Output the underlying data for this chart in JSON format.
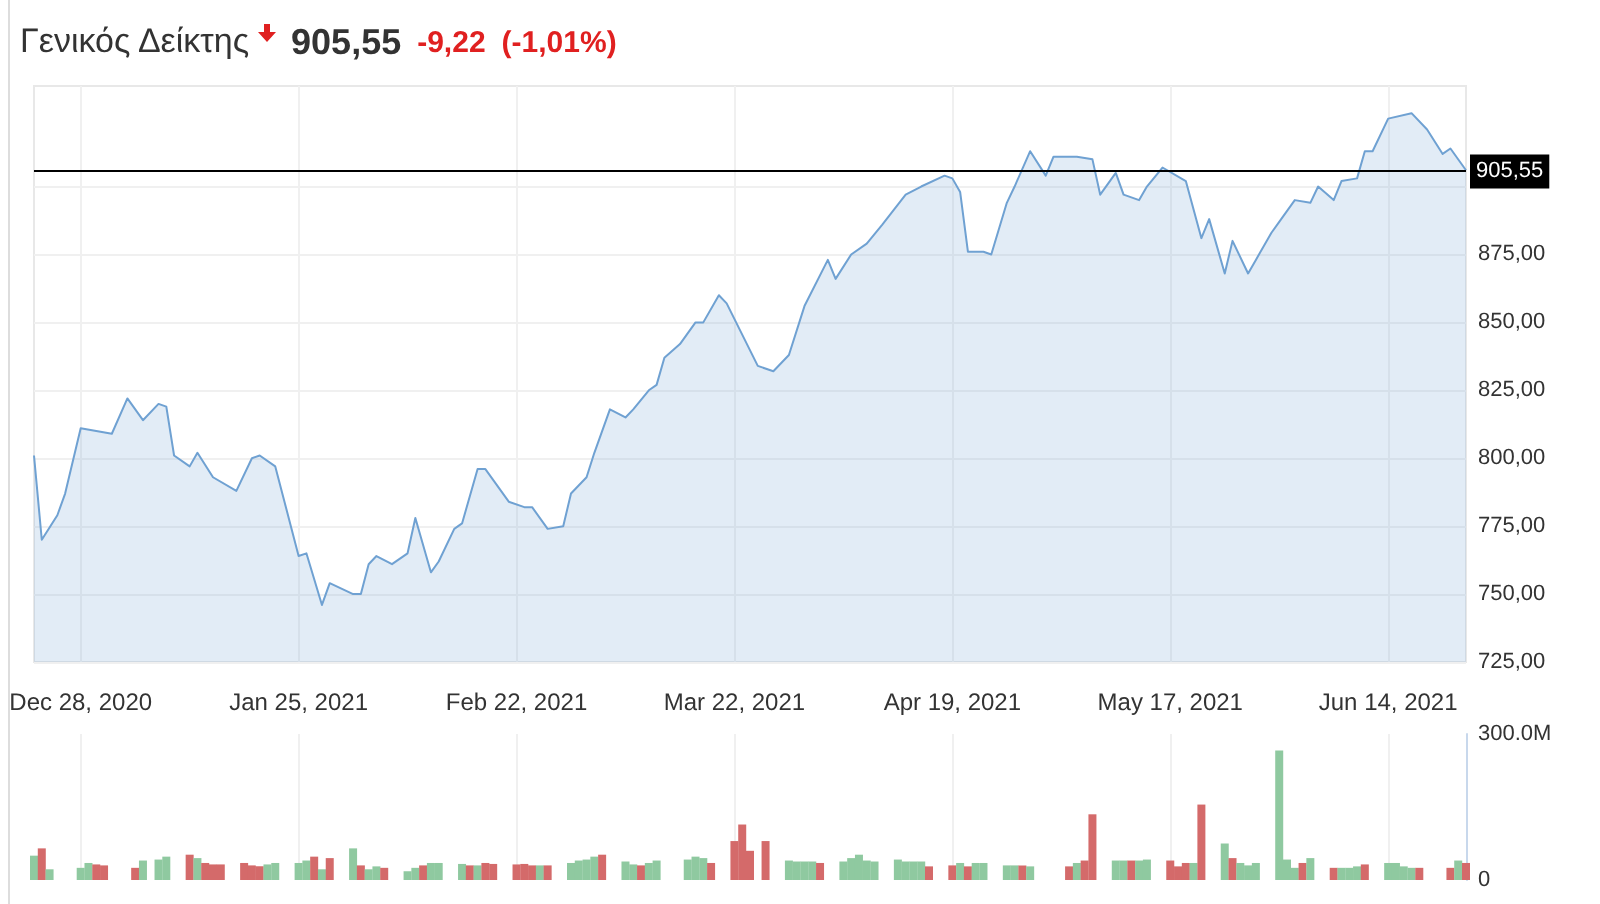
{
  "chart_data": [
    {
      "type": "area",
      "title": "Γενικός Δείκτης",
      "annotations": [
        "905,55",
        "-9,22",
        "(-1,01%)"
      ],
      "x": [
        "2020-12-22",
        "2020-12-23",
        "2020-12-25",
        "2020-12-26",
        "2020-12-28",
        "2021-01-01",
        "2021-01-03",
        "2021-01-05",
        "2021-01-07",
        "2021-01-08",
        "2021-01-09",
        "2021-01-11",
        "2021-01-12",
        "2021-01-14",
        "2021-01-17",
        "2021-01-19",
        "2021-01-20",
        "2021-01-22",
        "2021-01-25",
        "2021-01-26",
        "2021-01-28",
        "2021-01-29",
        "2021-02-01",
        "2021-02-02",
        "2021-02-03",
        "2021-02-04",
        "2021-02-06",
        "2021-02-08",
        "2021-02-09",
        "2021-02-11",
        "2021-02-12",
        "2021-02-14",
        "2021-02-15",
        "2021-02-17",
        "2021-02-18",
        "2021-02-21",
        "2021-02-23",
        "2021-02-24",
        "2021-02-26",
        "2021-02-28",
        "2021-03-01",
        "2021-03-03",
        "2021-03-04",
        "2021-03-06",
        "2021-03-08",
        "2021-03-09",
        "2021-03-11",
        "2021-03-12",
        "2021-03-13",
        "2021-03-15",
        "2021-03-17",
        "2021-03-18",
        "2021-03-20",
        "2021-03-21",
        "2021-03-25",
        "2021-03-27",
        "2021-03-29",
        "2021-03-31",
        "2021-04-03",
        "2021-04-04",
        "2021-04-06",
        "2021-04-08",
        "2021-04-10",
        "2021-04-13",
        "2021-04-15",
        "2021-04-18",
        "2021-04-19",
        "2021-04-20",
        "2021-04-21",
        "2021-04-23",
        "2021-04-24",
        "2021-04-26",
        "2021-04-27",
        "2021-04-29",
        "2021-05-01",
        "2021-05-02",
        "2021-05-05",
        "2021-05-07",
        "2021-05-08",
        "2021-05-10",
        "2021-05-11",
        "2021-05-13",
        "2021-05-14",
        "2021-05-16",
        "2021-05-19",
        "2021-05-21",
        "2021-05-22",
        "2021-05-24",
        "2021-05-25",
        "2021-05-27",
        "2021-05-28",
        "2021-05-30",
        "2021-05-31",
        "2021-06-02",
        "2021-06-04",
        "2021-06-05",
        "2021-06-07",
        "2021-06-08",
        "2021-06-10",
        "2021-06-11",
        "2021-06-12",
        "2021-06-14",
        "2021-06-17",
        "2021-06-19",
        "2021-06-21",
        "2021-06-22",
        "2021-06-24"
      ],
      "values": [
        801,
        770,
        779,
        787,
        811,
        809,
        822,
        814,
        820,
        819,
        801,
        797,
        802,
        793,
        788,
        800,
        801,
        797,
        764,
        765,
        746,
        754,
        750,
        750,
        761,
        764,
        761,
        765,
        778,
        758,
        762,
        774,
        776,
        796,
        796,
        784,
        782,
        782,
        774,
        775,
        787,
        793,
        802,
        818,
        815,
        818,
        825,
        827,
        837,
        842,
        850,
        850,
        860,
        857,
        834,
        832,
        838,
        856,
        873,
        866,
        875,
        879,
        886,
        897,
        900,
        904,
        903,
        898,
        876,
        876,
        875,
        894,
        900,
        913,
        904,
        911,
        911,
        910,
        897,
        905,
        897,
        895,
        900,
        907,
        902,
        881,
        888,
        868,
        880,
        868,
        873,
        883,
        887,
        895,
        894,
        900,
        895,
        902,
        903,
        913,
        913,
        925,
        927,
        921,
        912,
        914,
        906
      ],
      "color": "#6fa1d2",
      "xlim": [
        "2020-12-22",
        "2021-06-24"
      ],
      "xticks": [
        {
          "value": "2020-12-28",
          "label": "Dec 28, 2020"
        },
        {
          "value": "2021-01-25",
          "label": "Jan 25, 2021"
        },
        {
          "value": "2021-02-22",
          "label": "Feb 22, 2021"
        },
        {
          "value": "2021-03-22",
          "label": "Mar 22, 2021"
        },
        {
          "value": "2021-04-19",
          "label": "Apr 19, 2021"
        },
        {
          "value": "2021-05-17",
          "label": "May 17, 2021"
        },
        {
          "value": "2021-06-14",
          "label": "Jun 14, 2021"
        }
      ],
      "ylim": [
        725,
        937
      ],
      "yticks": [
        {
          "value": 725,
          "label": "725,00"
        },
        {
          "value": 750,
          "label": "750,00"
        },
        {
          "value": 775,
          "label": "775,00"
        },
        {
          "value": 800,
          "label": "800,00"
        },
        {
          "value": 825,
          "label": "825,00"
        },
        {
          "value": 850,
          "label": "850,00"
        },
        {
          "value": 875,
          "label": "875,00"
        },
        {
          "value": 900,
          "label": null
        }
      ],
      "grid": true,
      "marker": "none",
      "ref_lines": [
        {
          "axis": "y",
          "value": 905.55,
          "label": "905,55",
          "color": "#000000"
        }
      ]
    },
    {
      "type": "bar",
      "x": [
        "2020-12-22",
        "2020-12-23",
        "2020-12-24",
        "2020-12-28",
        "2020-12-29",
        "2020-12-30",
        "2020-12-31",
        "2021-01-04",
        "2021-01-05",
        "2021-01-07",
        "2021-01-08",
        "2021-01-11",
        "2021-01-12",
        "2021-01-13",
        "2021-01-14",
        "2021-01-15",
        "2021-01-18",
        "2021-01-19",
        "2021-01-20",
        "2021-01-21",
        "2021-01-22",
        "2021-01-25",
        "2021-01-26",
        "2021-01-27",
        "2021-01-28",
        "2021-01-29",
        "2021-02-01",
        "2021-02-02",
        "2021-02-03",
        "2021-02-04",
        "2021-02-05",
        "2021-02-08",
        "2021-02-09",
        "2021-02-10",
        "2021-02-11",
        "2021-02-12",
        "2021-02-15",
        "2021-02-16",
        "2021-02-17",
        "2021-02-18",
        "2021-02-19",
        "2021-02-22",
        "2021-02-23",
        "2021-02-24",
        "2021-02-25",
        "2021-02-26",
        "2021-03-01",
        "2021-03-02",
        "2021-03-03",
        "2021-03-04",
        "2021-03-05",
        "2021-03-08",
        "2021-03-09",
        "2021-03-10",
        "2021-03-11",
        "2021-03-12",
        "2021-03-16",
        "2021-03-17",
        "2021-03-18",
        "2021-03-19",
        "2021-03-22",
        "2021-03-23",
        "2021-03-24",
        "2021-03-26",
        "2021-03-29",
        "2021-03-30",
        "2021-03-31",
        "2021-04-01",
        "2021-04-02",
        "2021-04-05",
        "2021-04-06",
        "2021-04-07",
        "2021-04-08",
        "2021-04-09",
        "2021-04-12",
        "2021-04-13",
        "2021-04-14",
        "2021-04-15",
        "2021-04-16",
        "2021-04-19",
        "2021-04-20",
        "2021-04-21",
        "2021-04-22",
        "2021-04-23",
        "2021-04-26",
        "2021-04-27",
        "2021-04-28",
        "2021-04-29",
        "2021-05-04",
        "2021-05-05",
        "2021-05-06",
        "2021-05-07",
        "2021-05-10",
        "2021-05-11",
        "2021-05-12",
        "2021-05-13",
        "2021-05-14",
        "2021-05-17",
        "2021-05-18",
        "2021-05-19",
        "2021-05-20",
        "2021-05-21",
        "2021-05-24",
        "2021-05-25",
        "2021-05-26",
        "2021-05-27",
        "2021-05-28",
        "2021-05-31",
        "2021-06-01",
        "2021-06-02",
        "2021-06-03",
        "2021-06-04",
        "2021-06-07",
        "2021-06-08",
        "2021-06-09",
        "2021-06-10",
        "2021-06-11",
        "2021-06-14",
        "2021-06-15",
        "2021-06-16",
        "2021-06-17",
        "2021-06-18",
        "2021-06-22",
        "2021-06-23",
        "2021-06-24"
      ],
      "values": [
        50,
        65,
        22,
        25,
        35,
        32,
        30,
        25,
        40,
        42,
        48,
        52,
        45,
        35,
        32,
        32,
        35,
        30,
        28,
        32,
        35,
        35,
        40,
        48,
        22,
        45,
        65,
        30,
        22,
        28,
        25,
        18,
        25,
        30,
        35,
        35,
        33,
        30,
        30,
        35,
        33,
        32,
        33,
        30,
        30,
        30,
        35,
        40,
        42,
        48,
        52,
        38,
        32,
        30,
        35,
        40,
        42,
        48,
        45,
        35,
        80,
        114,
        60,
        80,
        40,
        38,
        38,
        38,
        35,
        38,
        45,
        52,
        40,
        38,
        42,
        38,
        38,
        38,
        28,
        30,
        35,
        28,
        35,
        35,
        30,
        30,
        30,
        28,
        28,
        35,
        40,
        135,
        40,
        40,
        40,
        40,
        42,
        40,
        28,
        35,
        35,
        155,
        75,
        45,
        35,
        30,
        35,
        266,
        42,
        25,
        35,
        45,
        25,
        25,
        25,
        28,
        32,
        35,
        35,
        28,
        25,
        25,
        25,
        40,
        35
      ],
      "colors": [
        "#8fc9a0",
        "#d46a6a",
        "#8fc9a0",
        "#8fc9a0",
        "#8fc9a0",
        "#d46a6a",
        "#d46a6a",
        "#d46a6a",
        "#8fc9a0",
        "#8fc9a0",
        "#8fc9a0",
        "#d46a6a",
        "#8fc9a0",
        "#d46a6a",
        "#d46a6a",
        "#d46a6a",
        "#d46a6a",
        "#d46a6a",
        "#d46a6a",
        "#8fc9a0",
        "#8fc9a0",
        "#8fc9a0",
        "#8fc9a0",
        "#d46a6a",
        "#8fc9a0",
        "#d46a6a",
        "#8fc9a0",
        "#d46a6a",
        "#8fc9a0",
        "#8fc9a0",
        "#d46a6a",
        "#8fc9a0",
        "#8fc9a0",
        "#d46a6a",
        "#8fc9a0",
        "#8fc9a0",
        "#8fc9a0",
        "#d46a6a",
        "#8fc9a0",
        "#d46a6a",
        "#d46a6a",
        "#d46a6a",
        "#d46a6a",
        "#d46a6a",
        "#8fc9a0",
        "#d46a6a",
        "#8fc9a0",
        "#8fc9a0",
        "#8fc9a0",
        "#8fc9a0",
        "#d46a6a",
        "#8fc9a0",
        "#8fc9a0",
        "#d46a6a",
        "#8fc9a0",
        "#8fc9a0",
        "#8fc9a0",
        "#8fc9a0",
        "#8fc9a0",
        "#d46a6a",
        "#d46a6a",
        "#d46a6a",
        "#d46a6a",
        "#d46a6a",
        "#8fc9a0",
        "#8fc9a0",
        "#8fc9a0",
        "#8fc9a0",
        "#d46a6a",
        "#8fc9a0",
        "#8fc9a0",
        "#8fc9a0",
        "#8fc9a0",
        "#8fc9a0",
        "#8fc9a0",
        "#8fc9a0",
        "#8fc9a0",
        "#8fc9a0",
        "#d46a6a",
        "#d46a6a",
        "#8fc9a0",
        "#d46a6a",
        "#8fc9a0",
        "#8fc9a0",
        "#8fc9a0",
        "#8fc9a0",
        "#d46a6a",
        "#8fc9a0",
        "#d46a6a",
        "#8fc9a0",
        "#d46a6a",
        "#d46a6a",
        "#8fc9a0",
        "#8fc9a0",
        "#d46a6a",
        "#8fc9a0",
        "#8fc9a0",
        "#d46a6a",
        "#d46a6a",
        "#d46a6a",
        "#8fc9a0",
        "#d46a6a",
        "#8fc9a0",
        "#d46a6a",
        "#8fc9a0",
        "#8fc9a0",
        "#8fc9a0",
        "#8fc9a0",
        "#8fc9a0",
        "#8fc9a0",
        "#d46a6a",
        "#8fc9a0",
        "#d46a6a",
        "#8fc9a0",
        "#8fc9a0",
        "#8fc9a0",
        "#d46a6a",
        "#8fc9a0",
        "#8fc9a0",
        "#8fc9a0",
        "#8fc9a0",
        "#d46a6a",
        "#d46a6a",
        "#8fc9a0",
        "#d46a6a"
      ],
      "xlim": [
        "2020-12-22",
        "2021-06-24"
      ],
      "xticks": [
        {
          "value": "2020-12-28",
          "label": null
        },
        {
          "value": "2021-01-25",
          "label": null
        },
        {
          "value": "2021-02-22",
          "label": null
        },
        {
          "value": "2021-03-22",
          "label": null
        },
        {
          "value": "2021-04-19",
          "label": null
        },
        {
          "value": "2021-05-17",
          "label": null
        },
        {
          "value": "2021-06-14",
          "label": null
        }
      ],
      "ylim": [
        0,
        300
      ],
      "yticks": [
        0,
        {
          "value": 300,
          "label": "300.0M"
        }
      ],
      "grid": "x",
      "tick_labels": "y"
    }
  ]
}
